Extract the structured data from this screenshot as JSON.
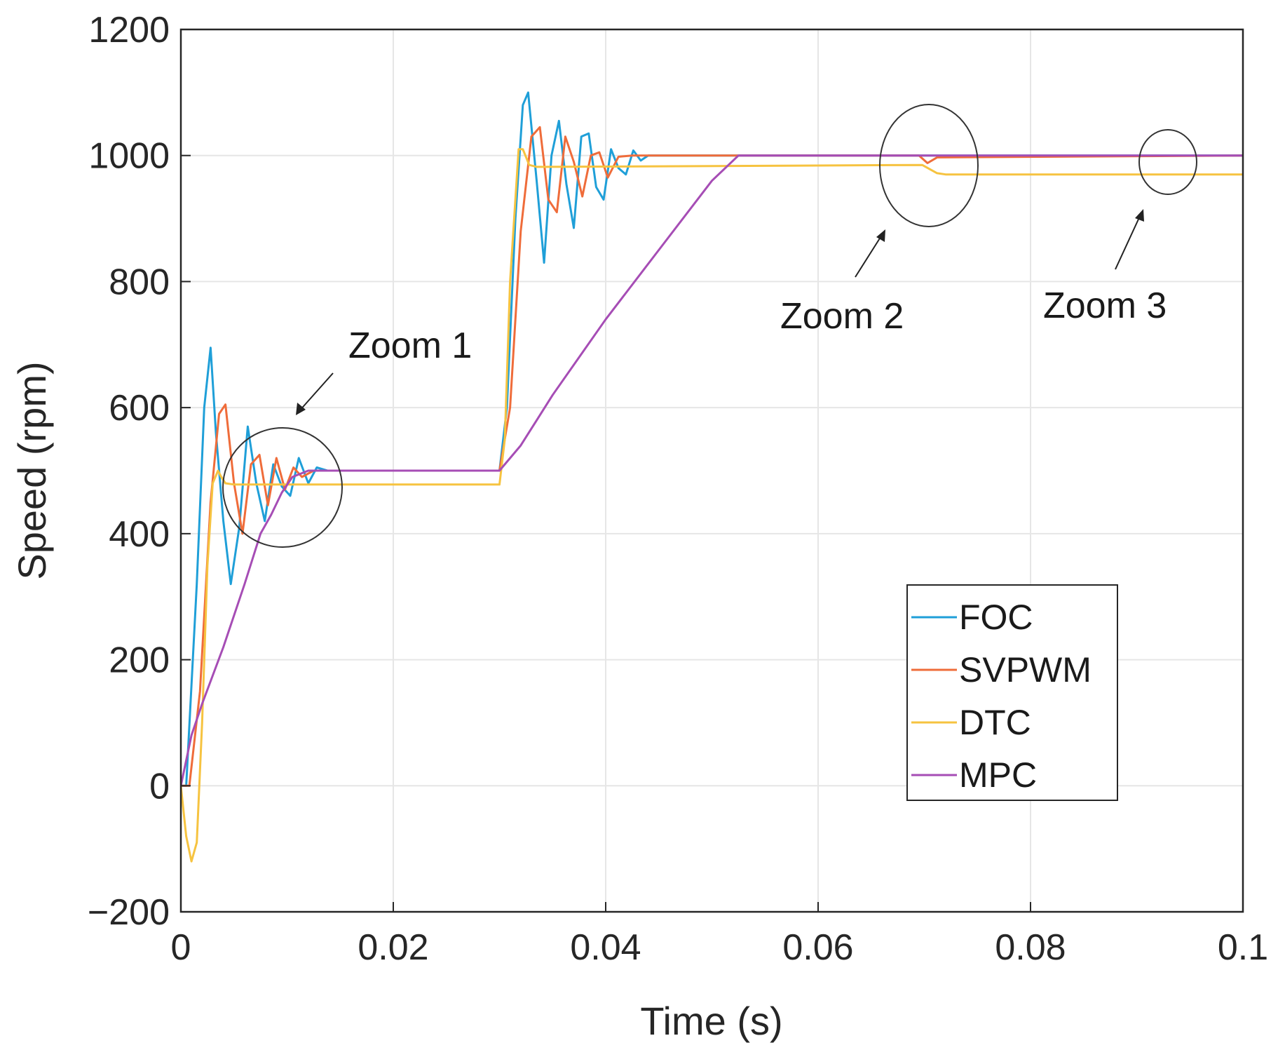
{
  "chart_data": {
    "type": "line",
    "title": "",
    "xlabel": "Time (s)",
    "ylabel": "Speed (rpm)",
    "xlim": [
      0,
      0.1
    ],
    "ylim": [
      -200,
      1200
    ],
    "grid": true,
    "x_ticks": [
      0,
      0.02,
      0.04,
      0.06,
      0.08,
      0.1
    ],
    "x_tick_labels": [
      "0",
      "0.02",
      "0.04",
      "0.06",
      "0.08",
      "0.1"
    ],
    "y_ticks": [
      -200,
      0,
      200,
      400,
      600,
      800,
      1000,
      1200
    ],
    "y_tick_labels": [
      "−200",
      "0",
      "200",
      "400",
      "600",
      "800",
      "1000",
      "1200"
    ],
    "legend_position": "bottom-right",
    "series": [
      {
        "name": "FOC",
        "color": "#1f9fd8",
        "x": [
          0,
          0.0005,
          0.0015,
          0.0022,
          0.0028,
          0.0033,
          0.004,
          0.0047,
          0.0055,
          0.0063,
          0.0071,
          0.0079,
          0.0087,
          0.0095,
          0.0103,
          0.0111,
          0.012,
          0.0128,
          0.0138,
          0.03,
          0.0307,
          0.0315,
          0.0322,
          0.0327,
          0.0335,
          0.0342,
          0.0349,
          0.0356,
          0.0363,
          0.037,
          0.0377,
          0.0384,
          0.0391,
          0.0398,
          0.0405,
          0.0412,
          0.0419,
          0.0426,
          0.0433,
          0.044,
          0.1
        ],
        "y": [
          0,
          0,
          320,
          600,
          695,
          560,
          420,
          320,
          410,
          570,
          480,
          420,
          510,
          475,
          460,
          520,
          480,
          505,
          500,
          500,
          600,
          900,
          1080,
          1100,
          960,
          830,
          1000,
          1055,
          955,
          885,
          1030,
          1035,
          950,
          930,
          1010,
          980,
          970,
          1008,
          992,
          1000,
          1000
        ]
      },
      {
        "name": "SVPWM",
        "color": "#ef6c3a",
        "x": [
          0,
          0.0008,
          0.0018,
          0.0028,
          0.0036,
          0.0042,
          0.005,
          0.0058,
          0.0066,
          0.0074,
          0.0082,
          0.009,
          0.0098,
          0.0106,
          0.0114,
          0.0125,
          0.03,
          0.031,
          0.032,
          0.033,
          0.0338,
          0.0346,
          0.0354,
          0.0362,
          0.037,
          0.0378,
          0.0386,
          0.0394,
          0.0402,
          0.0412,
          0.0425,
          0.0695,
          0.0703,
          0.0712,
          0.1
        ],
        "y": [
          0,
          0,
          150,
          450,
          590,
          605,
          480,
          400,
          510,
          525,
          445,
          520,
          470,
          505,
          490,
          500,
          500,
          600,
          880,
          1030,
          1045,
          930,
          910,
          1030,
          990,
          935,
          1000,
          1005,
          965,
          998,
          1000,
          1000,
          988,
          997,
          1000
        ]
      },
      {
        "name": "DTC",
        "color": "#f6c340",
        "x": [
          0,
          0.0005,
          0.001,
          0.0015,
          0.002,
          0.0025,
          0.003,
          0.0035,
          0.0038,
          0.0042,
          0.005,
          0.03,
          0.0305,
          0.031,
          0.0318,
          0.0322,
          0.0328,
          0.0335,
          0.0345,
          0.0698,
          0.0712,
          0.072,
          0.1
        ],
        "y": [
          0,
          -80,
          -120,
          -90,
          100,
          350,
          480,
          500,
          490,
          480,
          478,
          478,
          550,
          800,
          1010,
          1010,
          985,
          982,
          982,
          985,
          972,
          970,
          970
        ]
      },
      {
        "name": "MPC",
        "color": "#a64db5",
        "x": [
          0,
          0.001,
          0.002,
          0.004,
          0.006,
          0.0075,
          0.0085,
          0.0095,
          0.0105,
          0.012,
          0.03,
          0.032,
          0.035,
          0.04,
          0.045,
          0.05,
          0.0525,
          0.1
        ],
        "y": [
          0,
          80,
          130,
          220,
          320,
          400,
          430,
          465,
          490,
          500,
          500,
          540,
          620,
          740,
          850,
          960,
          1000,
          1000
        ]
      }
    ],
    "annotations": [
      {
        "text": "Zoom 1",
        "x": 0.0095,
        "y": 480
      },
      {
        "text": "Zoom 2",
        "x": 0.0703,
        "y": 985
      },
      {
        "text": "Zoom 3",
        "x": 0.0925,
        "y": 990
      }
    ]
  }
}
